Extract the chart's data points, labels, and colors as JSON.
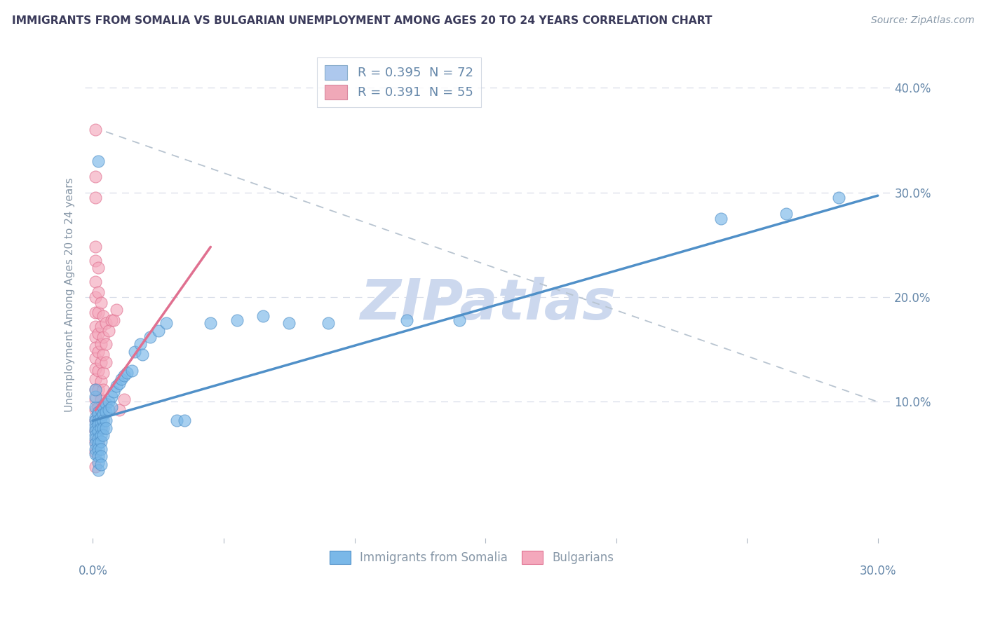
{
  "title": "IMMIGRANTS FROM SOMALIA VS BULGARIAN UNEMPLOYMENT AMONG AGES 20 TO 24 YEARS CORRELATION CHART",
  "source": "Source: ZipAtlas.com",
  "ylabel": "Unemployment Among Ages 20 to 24 years",
  "xlim": [
    -0.003,
    0.305
  ],
  "ylim": [
    -0.03,
    0.435
  ],
  "y_ticks": [
    0.0,
    0.1,
    0.2,
    0.3,
    0.4
  ],
  "x_ticks": [
    0.0,
    0.05,
    0.1,
    0.15,
    0.2,
    0.25,
    0.3
  ],
  "legend_entries": [
    {
      "label": "R = 0.395  N = 72",
      "color": "#adc8ed"
    },
    {
      "label": "R = 0.391  N = 55",
      "color": "#f0a8b8"
    }
  ],
  "somalia_color": "#7ab8e8",
  "bulgarian_color": "#f4a8bc",
  "somalia_edge": "#5090c8",
  "bulgarian_edge": "#e07090",
  "watermark": "ZIPatlas",
  "watermark_color": "#ccd8ee",
  "title_color": "#3a3a5a",
  "axis_label_color": "#8898a8",
  "tick_color": "#6688aa",
  "grid_color": "#d8dde8",
  "regression_line_blue": [
    [
      0.0,
      0.082
    ],
    [
      0.3,
      0.297
    ]
  ],
  "regression_line_pink": [
    [
      0.001,
      0.092
    ],
    [
      0.045,
      0.248
    ]
  ],
  "dashed_line": [
    [
      0.005,
      0.358
    ],
    [
      0.3,
      0.1
    ]
  ],
  "somalia_points": [
    [
      0.002,
      0.33
    ],
    [
      0.001,
      0.085
    ],
    [
      0.001,
      0.082
    ],
    [
      0.001,
      0.078
    ],
    [
      0.001,
      0.095
    ],
    [
      0.001,
      0.075
    ],
    [
      0.001,
      0.072
    ],
    [
      0.001,
      0.068
    ],
    [
      0.001,
      0.065
    ],
    [
      0.001,
      0.06
    ],
    [
      0.001,
      0.055
    ],
    [
      0.001,
      0.05
    ],
    [
      0.001,
      0.105
    ],
    [
      0.001,
      0.112
    ],
    [
      0.002,
      0.09
    ],
    [
      0.002,
      0.088
    ],
    [
      0.002,
      0.082
    ],
    [
      0.002,
      0.078
    ],
    [
      0.002,
      0.072
    ],
    [
      0.002,
      0.065
    ],
    [
      0.002,
      0.06
    ],
    [
      0.002,
      0.055
    ],
    [
      0.002,
      0.048
    ],
    [
      0.002,
      0.042
    ],
    [
      0.002,
      0.035
    ],
    [
      0.003,
      0.092
    ],
    [
      0.003,
      0.085
    ],
    [
      0.003,
      0.08
    ],
    [
      0.003,
      0.075
    ],
    [
      0.003,
      0.068
    ],
    [
      0.003,
      0.062
    ],
    [
      0.003,
      0.055
    ],
    [
      0.003,
      0.048
    ],
    [
      0.003,
      0.04
    ],
    [
      0.004,
      0.095
    ],
    [
      0.004,
      0.088
    ],
    [
      0.004,
      0.082
    ],
    [
      0.004,
      0.075
    ],
    [
      0.004,
      0.068
    ],
    [
      0.005,
      0.098
    ],
    [
      0.005,
      0.09
    ],
    [
      0.005,
      0.082
    ],
    [
      0.005,
      0.075
    ],
    [
      0.006,
      0.1
    ],
    [
      0.006,
      0.092
    ],
    [
      0.007,
      0.105
    ],
    [
      0.007,
      0.095
    ],
    [
      0.008,
      0.11
    ],
    [
      0.009,
      0.115
    ],
    [
      0.01,
      0.118
    ],
    [
      0.011,
      0.122
    ],
    [
      0.012,
      0.125
    ],
    [
      0.013,
      0.128
    ],
    [
      0.015,
      0.13
    ],
    [
      0.016,
      0.148
    ],
    [
      0.018,
      0.155
    ],
    [
      0.019,
      0.145
    ],
    [
      0.022,
      0.162
    ],
    [
      0.025,
      0.168
    ],
    [
      0.028,
      0.175
    ],
    [
      0.032,
      0.082
    ],
    [
      0.035,
      0.082
    ],
    [
      0.045,
      0.175
    ],
    [
      0.055,
      0.178
    ],
    [
      0.065,
      0.182
    ],
    [
      0.075,
      0.175
    ],
    [
      0.09,
      0.175
    ],
    [
      0.12,
      0.178
    ],
    [
      0.14,
      0.178
    ],
    [
      0.24,
      0.275
    ],
    [
      0.265,
      0.28
    ],
    [
      0.285,
      0.295
    ]
  ],
  "bulgarian_points": [
    [
      0.001,
      0.36
    ],
    [
      0.001,
      0.315
    ],
    [
      0.001,
      0.295
    ],
    [
      0.001,
      0.248
    ],
    [
      0.001,
      0.235
    ],
    [
      0.001,
      0.215
    ],
    [
      0.001,
      0.2
    ],
    [
      0.001,
      0.185
    ],
    [
      0.001,
      0.172
    ],
    [
      0.001,
      0.162
    ],
    [
      0.001,
      0.152
    ],
    [
      0.001,
      0.142
    ],
    [
      0.001,
      0.132
    ],
    [
      0.001,
      0.122
    ],
    [
      0.001,
      0.112
    ],
    [
      0.001,
      0.102
    ],
    [
      0.001,
      0.092
    ],
    [
      0.001,
      0.082
    ],
    [
      0.001,
      0.072
    ],
    [
      0.001,
      0.062
    ],
    [
      0.001,
      0.052
    ],
    [
      0.001,
      0.038
    ],
    [
      0.002,
      0.228
    ],
    [
      0.002,
      0.205
    ],
    [
      0.002,
      0.185
    ],
    [
      0.002,
      0.165
    ],
    [
      0.002,
      0.148
    ],
    [
      0.002,
      0.13
    ],
    [
      0.002,
      0.112
    ],
    [
      0.002,
      0.095
    ],
    [
      0.002,
      0.078
    ],
    [
      0.002,
      0.062
    ],
    [
      0.003,
      0.195
    ],
    [
      0.003,
      0.172
    ],
    [
      0.003,
      0.155
    ],
    [
      0.003,
      0.138
    ],
    [
      0.003,
      0.12
    ],
    [
      0.003,
      0.102
    ],
    [
      0.003,
      0.088
    ],
    [
      0.003,
      0.075
    ],
    [
      0.004,
      0.182
    ],
    [
      0.004,
      0.162
    ],
    [
      0.004,
      0.145
    ],
    [
      0.004,
      0.128
    ],
    [
      0.004,
      0.112
    ],
    [
      0.004,
      0.095
    ],
    [
      0.005,
      0.175
    ],
    [
      0.005,
      0.155
    ],
    [
      0.005,
      0.138
    ],
    [
      0.006,
      0.168
    ],
    [
      0.007,
      0.178
    ],
    [
      0.008,
      0.178
    ],
    [
      0.009,
      0.188
    ],
    [
      0.01,
      0.092
    ],
    [
      0.012,
      0.102
    ]
  ]
}
